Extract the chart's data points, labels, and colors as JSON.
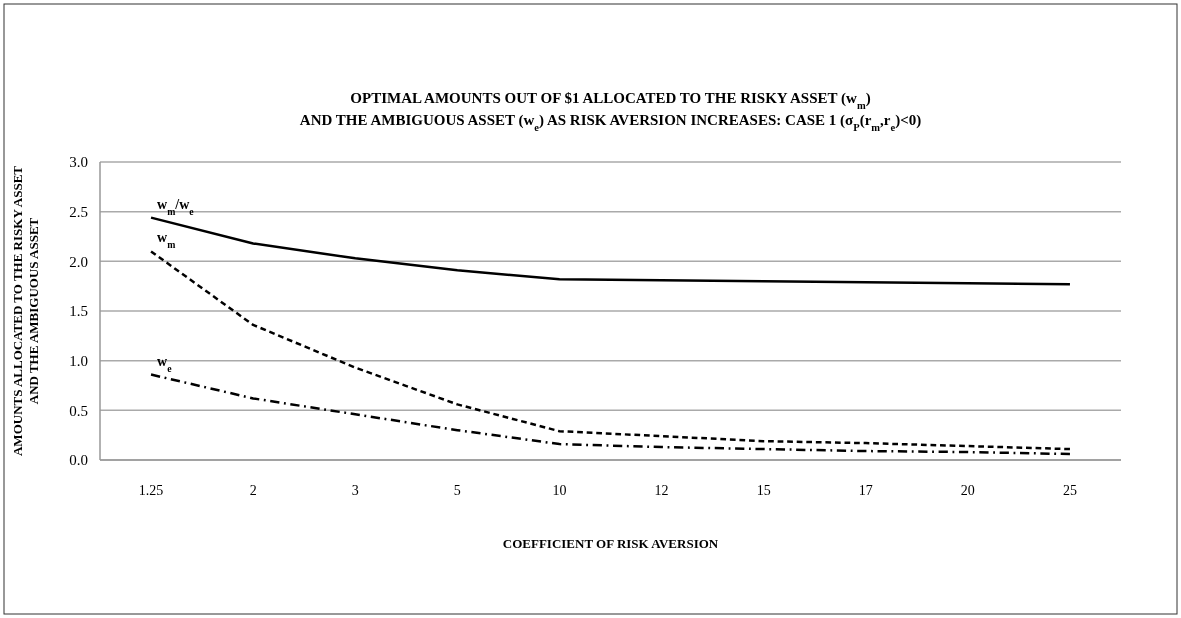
{
  "chart_data": {
    "type": "line",
    "title": "OPTIMAL AMOUNTS OUT OF $1 ALLOCATED TO THE RISKY ASSET (w$_{m}$)\nAND THE AMBIGUOUS ASSET (w$_{e}$) AS RISK AVERSION INCREASES: CASE 1 (σ$_{P}$(r$_{m}$,r$_{e}$)<0)",
    "xlabel": "COEFFICIENT OF RISK AVERSION",
    "ylabel": "AMOUNTS ALLOCATED TO THE RISKY ASSET\nAND THE AMBIGUOUS ASSET",
    "categories": [
      "1.25",
      "2",
      "3",
      "5",
      "10",
      "12",
      "15",
      "17",
      "20",
      "25"
    ],
    "series": [
      {
        "name": "w$_{m}$/w$_{e}$",
        "color": "#000000",
        "line_style": "solid",
        "values": [
          2.44,
          2.18,
          2.03,
          1.91,
          1.82,
          1.81,
          1.8,
          1.79,
          1.78,
          1.77
        ]
      },
      {
        "name": "w$_{m}$",
        "color": "#000000",
        "line_style": "dashed",
        "values": [
          2.1,
          1.36,
          0.93,
          0.56,
          0.29,
          0.24,
          0.19,
          0.17,
          0.14,
          0.11
        ]
      },
      {
        "name": "w$_{e}$",
        "color": "#000000",
        "line_style": "dashdot",
        "values": [
          0.86,
          0.62,
          0.46,
          0.3,
          0.16,
          0.13,
          0.11,
          0.09,
          0.08,
          0.06
        ]
      }
    ],
    "ylim": [
      0,
      3
    ],
    "yticks": [
      {
        "value": 0,
        "label": "0.0"
      },
      {
        "value": 0.5,
        "label": "0.5"
      },
      {
        "value": 1,
        "label": "1.0"
      },
      {
        "value": 1.5,
        "label": "1.5"
      },
      {
        "value": 2,
        "label": "2.0"
      },
      {
        "value": 2.5,
        "label": "2.5"
      },
      {
        "value": 3,
        "label": "3.0"
      }
    ],
    "grid": "y",
    "marker": "none"
  }
}
